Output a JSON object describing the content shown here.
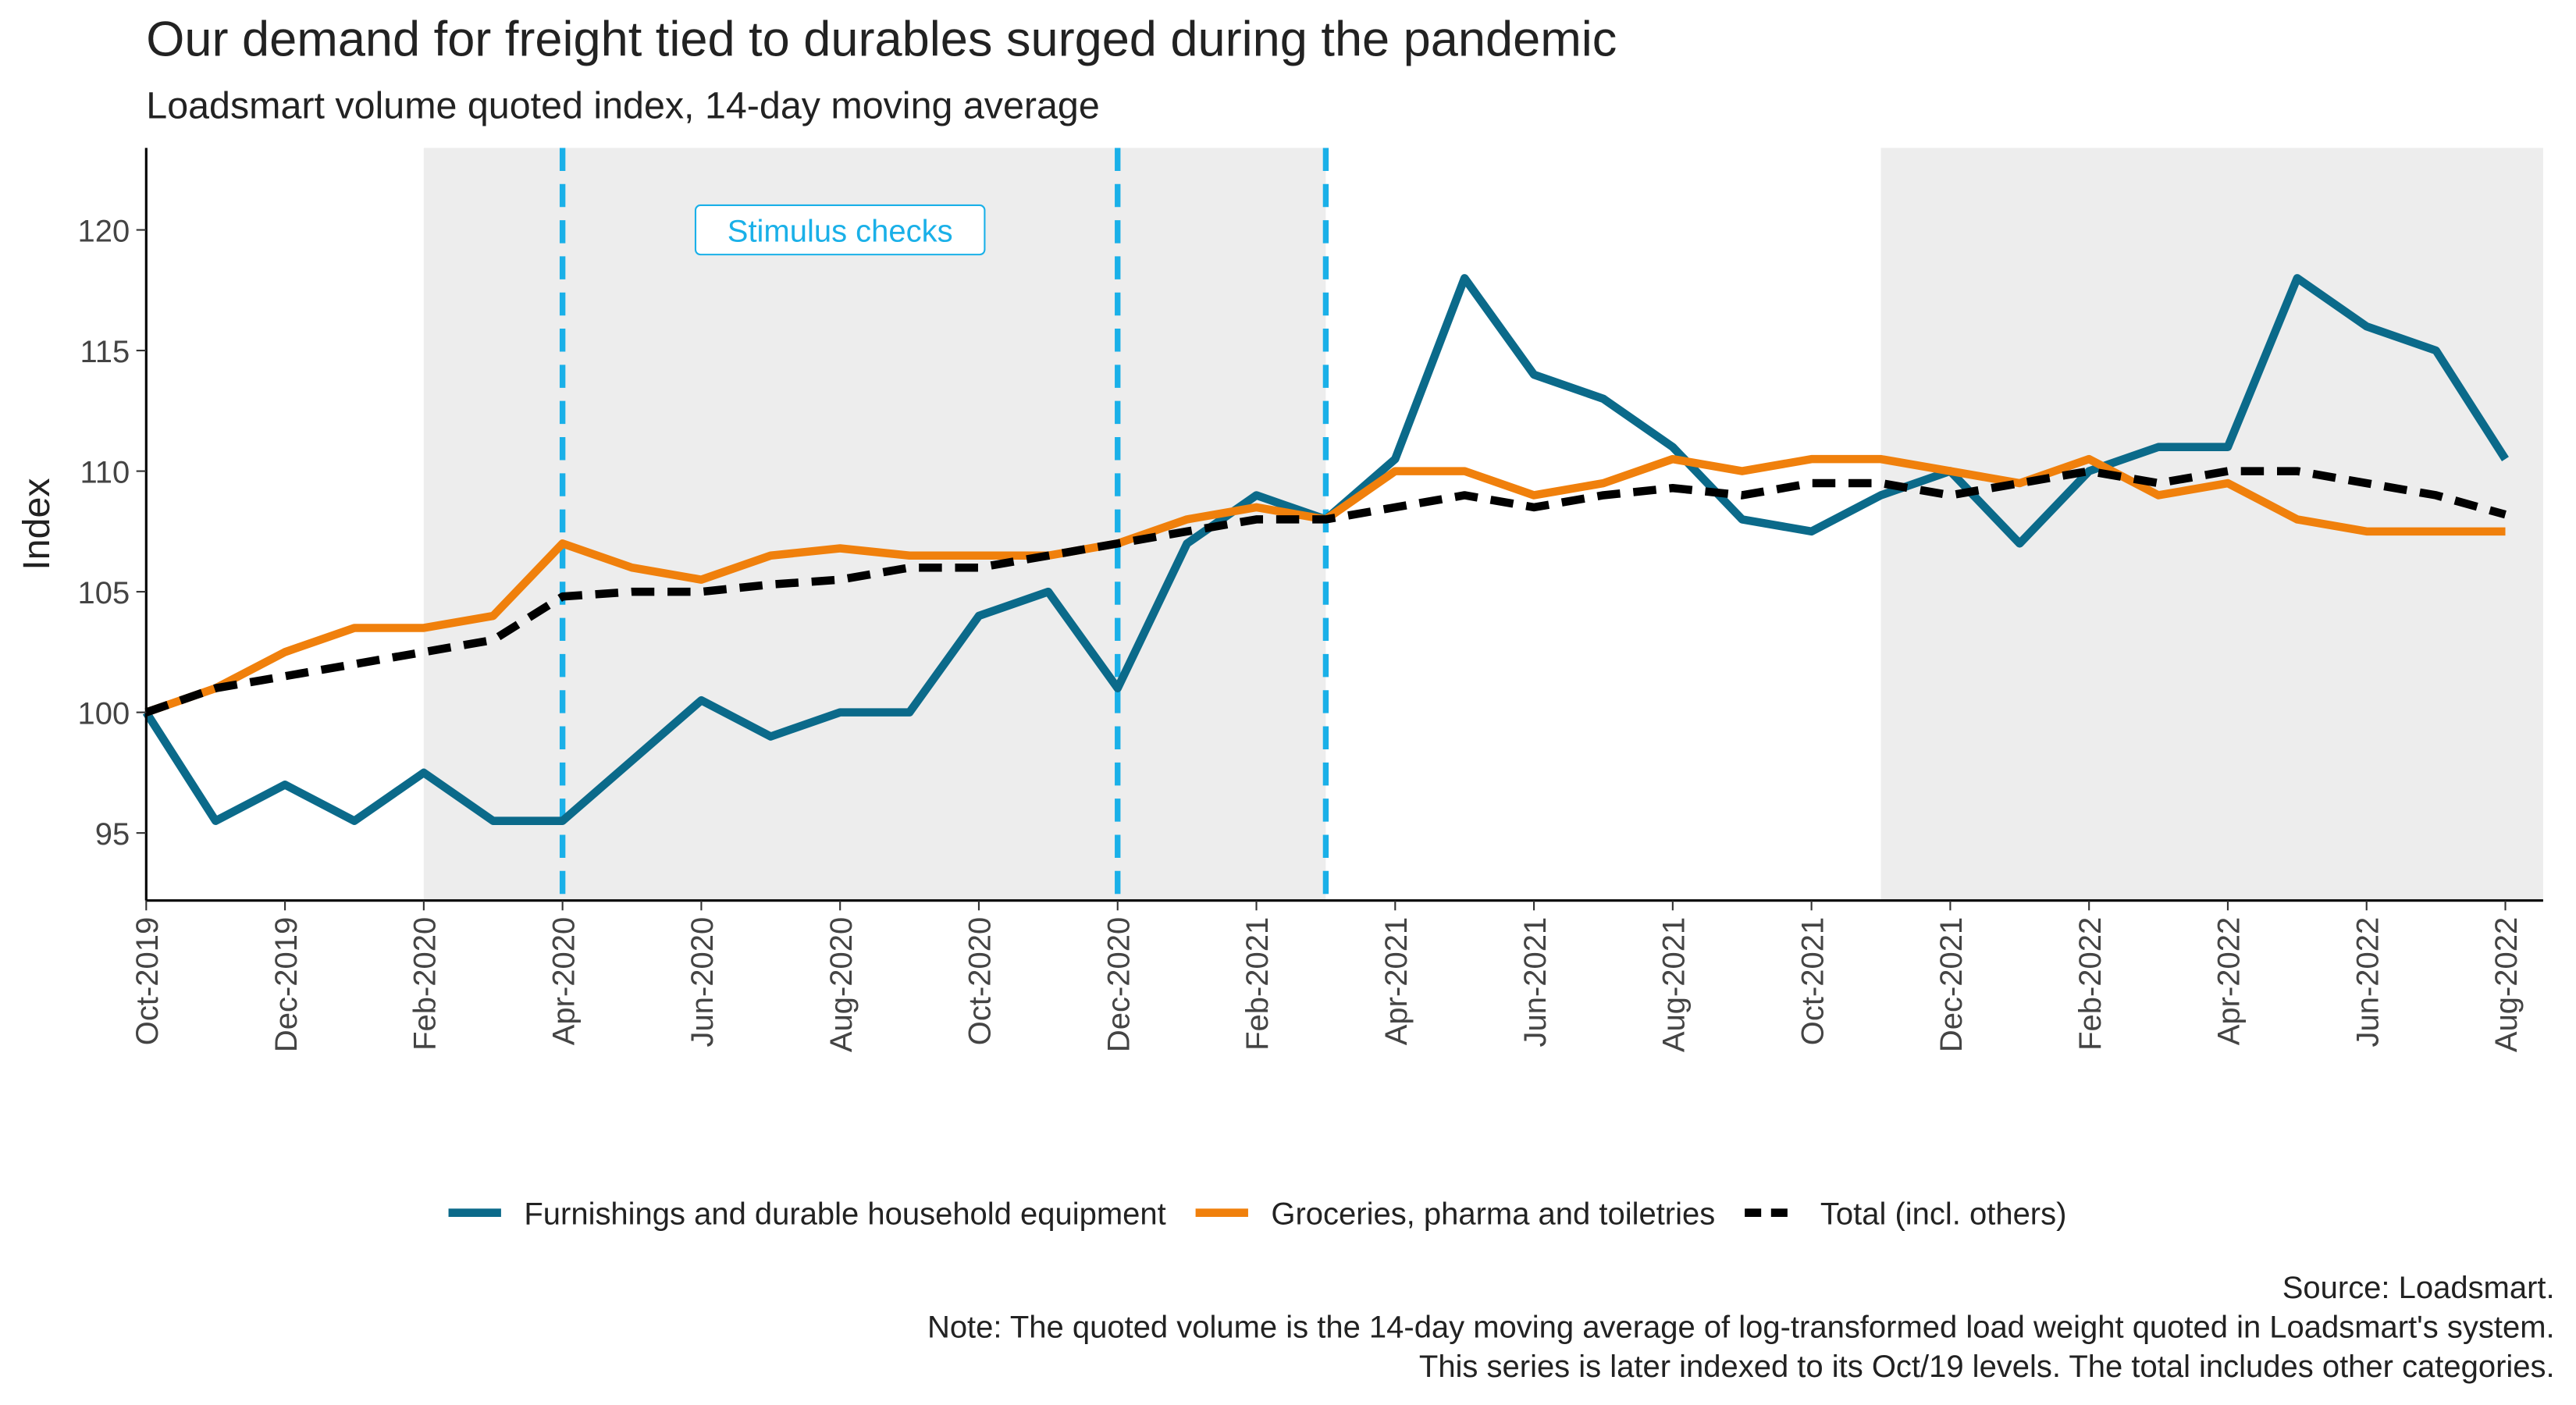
{
  "chart_data": {
    "type": "line",
    "title": "Our demand for freight tied to durables surged during the pandemic",
    "subtitle": "Loadsmart volume quoted index, 14-day moving average",
    "y_label": "Index",
    "annotation": "Stimulus checks",
    "annotation_x": "2020-08",
    "annotation_y": 120,
    "x": [
      "2019-10",
      "2019-11",
      "2019-12",
      "2020-01",
      "2020-02",
      "2020-03",
      "2020-04",
      "2020-05",
      "2020-06",
      "2020-07",
      "2020-08",
      "2020-09",
      "2020-10",
      "2020-11",
      "2020-12",
      "2021-01",
      "2021-02",
      "2021-03",
      "2021-04",
      "2021-05",
      "2021-06",
      "2021-07",
      "2021-08",
      "2021-09",
      "2021-10",
      "2021-11",
      "2021-12",
      "2022-01",
      "2022-02",
      "2022-03",
      "2022-04",
      "2022-05",
      "2022-06",
      "2022-07",
      "2022-08"
    ],
    "series": [
      {
        "name": "Furnishings and durable household equipment",
        "color": "#0b6a8a",
        "dash": false,
        "values": [
          100,
          95.5,
          97,
          95.5,
          97.5,
          95.5,
          95.5,
          98,
          100.5,
          99,
          100,
          100,
          104,
          105,
          101,
          107,
          109,
          108,
          110.5,
          118,
          114,
          113,
          111,
          108,
          107.5,
          109,
          110,
          107,
          110,
          111,
          111,
          118,
          116,
          115,
          110.5
        ]
      },
      {
        "name": "Groceries, pharma and toiletries",
        "color": "#f0800c",
        "dash": false,
        "values": [
          100,
          101,
          102.5,
          103.5,
          103.5,
          104,
          107,
          106,
          105.5,
          106.5,
          106.8,
          106.5,
          106.5,
          106.5,
          107,
          108,
          108.5,
          108,
          110,
          110,
          109,
          109.5,
          110.5,
          110,
          110.5,
          110.5,
          110,
          109.5,
          110.5,
          109,
          109.5,
          108,
          107.5,
          107.5,
          107.5
        ]
      },
      {
        "name": "Total (incl. others)",
        "color": "#000000",
        "dash": true,
        "values": [
          100,
          101,
          101.5,
          102,
          102.5,
          103,
          104.8,
          105,
          105,
          105.3,
          105.5,
          106,
          106,
          106.5,
          107,
          107.5,
          108,
          108,
          108.5,
          109,
          108.5,
          109,
          109.3,
          109,
          109.5,
          109.5,
          109,
          109.5,
          110,
          109.5,
          110,
          110,
          109.5,
          109,
          108.2
        ]
      }
    ],
    "shaded": [
      [
        "2020-02",
        "2021-03"
      ],
      [
        "2021-11",
        "2022-08"
      ]
    ],
    "vlines": [
      "2020-04",
      "2020-12",
      "2021-03"
    ],
    "vline_color": "#1ab0e8",
    "xlim": [
      "2019-10",
      "2022-08"
    ],
    "xticks": [
      {
        "value": "2019-10",
        "label": "Oct-2019"
      },
      {
        "value": "2019-12",
        "label": "Dec-2019"
      },
      {
        "value": "2020-02",
        "label": "Feb-2020"
      },
      {
        "value": "2020-04",
        "label": "Apr-2020"
      },
      {
        "value": "2020-06",
        "label": "Jun-2020"
      },
      {
        "value": "2020-08",
        "label": "Aug-2020"
      },
      {
        "value": "2020-10",
        "label": "Oct-2020"
      },
      {
        "value": "2020-12",
        "label": "Dec-2020"
      },
      {
        "value": "2021-02",
        "label": "Feb-2021"
      },
      {
        "value": "2021-04",
        "label": "Apr-2021"
      },
      {
        "value": "2021-06",
        "label": "Jun-2021"
      },
      {
        "value": "2021-08",
        "label": "Aug-2021"
      },
      {
        "value": "2021-10",
        "label": "Oct-2021"
      },
      {
        "value": "2021-12",
        "label": "Dec-2021"
      },
      {
        "value": "2022-02",
        "label": "Feb-2022"
      },
      {
        "value": "2022-04",
        "label": "Apr-2022"
      },
      {
        "value": "2022-06",
        "label": "Jun-2022"
      },
      {
        "value": "2022-08",
        "label": "Aug-2022"
      }
    ],
    "ylim": [
      92.2,
      123.4
    ],
    "yticks": [
      95,
      100,
      105,
      110,
      115,
      120
    ],
    "legend": "bottom",
    "caption": [
      "Source: Loadsmart.",
      "Note: The quoted volume is the 14-day moving average of log-transformed load weight quoted in Loadsmart's system.",
      "This series is later indexed to its Oct/19 levels. The total includes other categories."
    ]
  }
}
